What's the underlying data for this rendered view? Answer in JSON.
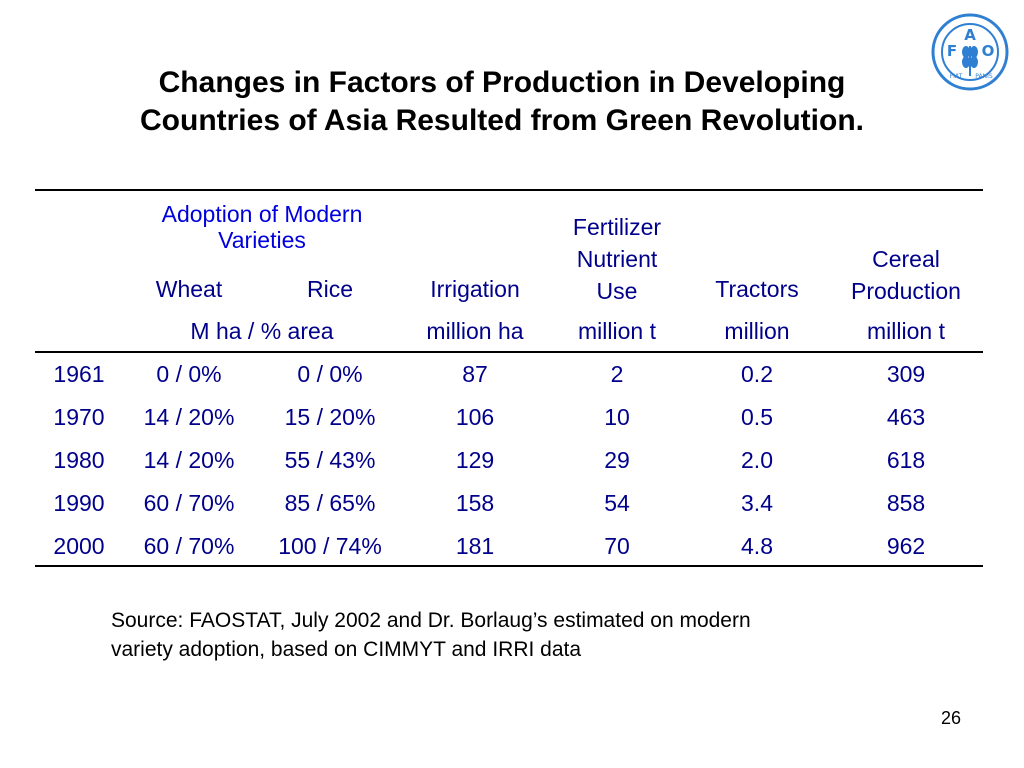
{
  "slide": {
    "title_line1": "Changes in Factors of Production in Developing",
    "title_line2": "Countries of Asia Resulted from Green Revolution.",
    "logo_text": "FAO",
    "logo_motto": "FIAT PANIS",
    "page_number": "26",
    "colors": {
      "header_group": "#0000dd",
      "table_text": "#00008b",
      "logo": "#2f7fd3"
    }
  },
  "table": {
    "group_header_line1": "Adoption of Modern",
    "group_header_line2": "Varieties",
    "col_wheat": "Wheat",
    "col_rice": "Rice",
    "col_irrigation": "Irrigation",
    "col_fert_1": "Fertilizer",
    "col_fert_2": "Nutrient",
    "col_fert_3": "Use",
    "col_tractors": "Tractors",
    "col_cereal_1": "Cereal",
    "col_cereal_2": "Production",
    "unit_mv": "M ha / % area",
    "unit_irrigation": "million ha",
    "unit_fert": "million t",
    "unit_tractors": "million",
    "unit_cereal": "million t",
    "rows": [
      [
        "1961",
        "0 / 0%",
        "0 / 0%",
        "87",
        "2",
        "0.2",
        "309"
      ],
      [
        "1970",
        "14 / 20%",
        "15 / 20%",
        "106",
        "10",
        "0.5",
        "463"
      ],
      [
        "1980",
        "14 / 20%",
        "55 / 43%",
        "129",
        "29",
        "2.0",
        "618"
      ],
      [
        "1990",
        "60 / 70%",
        "85 / 65%",
        "158",
        "54",
        "3.4",
        "858"
      ],
      [
        "2000",
        "60 / 70%",
        "100 / 74%",
        "181",
        "70",
        "4.8",
        "962"
      ]
    ]
  },
  "source": {
    "line1": "Source: FAOSTAT, July 2002 and Dr. Borlaug’s estimated on modern",
    "line2": "variety adoption, based on CIMMYT and IRRI data"
  }
}
